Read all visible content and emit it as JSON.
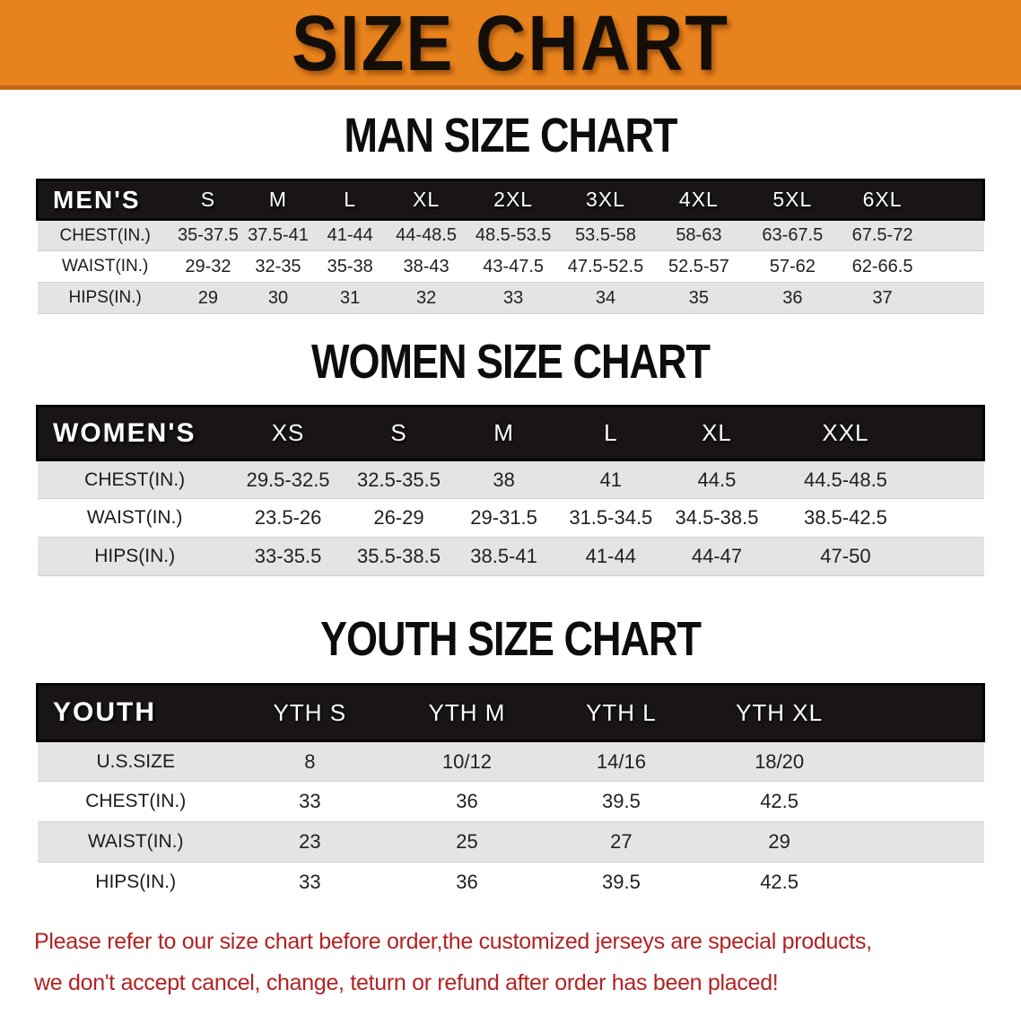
{
  "banner": {
    "title": "SIZE CHART",
    "bg_color": "#E8821C",
    "text_color": "#140e08"
  },
  "sections": [
    {
      "heading": "MAN SIZE CHART",
      "table": {
        "header_label": "MEN'S",
        "columns": [
          "S",
          "M",
          "L",
          "XL",
          "2XL",
          "3XL",
          "4XL",
          "5XL",
          "6XL"
        ],
        "rows": [
          {
            "label": "CHEST(IN.)",
            "values": [
              "35-37.5",
              "37.5-41",
              "41-44",
              "44-48.5",
              "48.5-53.5",
              "53.5-58",
              "58-63",
              "63-67.5",
              "67.5-72"
            ]
          },
          {
            "label": "WAIST(IN.)",
            "values": [
              "29-32",
              "32-35",
              "35-38",
              "38-43",
              "43-47.5",
              "47.5-52.5",
              "52.5-57",
              "57-62",
              "62-66.5"
            ]
          },
          {
            "label": "HIPS(IN.)",
            "values": [
              "29",
              "30",
              "31",
              "32",
              "33",
              "34",
              "35",
              "36",
              "37"
            ]
          }
        ]
      }
    },
    {
      "heading": "WOMEN SIZE CHART",
      "table": {
        "header_label": "WOMEN'S",
        "columns": [
          "XS",
          "S",
          "M",
          "L",
          "XL",
          "XXL"
        ],
        "rows": [
          {
            "label": "CHEST(IN.)",
            "values": [
              "29.5-32.5",
              "32.5-35.5",
              "38",
              "41",
              "44.5",
              "44.5-48.5"
            ]
          },
          {
            "label": "WAIST(IN.)",
            "values": [
              "23.5-26",
              "26-29",
              "29-31.5",
              "31.5-34.5",
              "34.5-38.5",
              "38.5-42.5"
            ]
          },
          {
            "label": "HIPS(IN.)",
            "values": [
              "33-35.5",
              "35.5-38.5",
              "38.5-41",
              "41-44",
              "44-47",
              "47-50"
            ]
          }
        ]
      }
    },
    {
      "heading": "YOUTH SIZE CHART",
      "table": {
        "header_label": "YOUTH",
        "columns": [
          "YTH S",
          "YTH M",
          "YTH L",
          "YTH XL"
        ],
        "rows": [
          {
            "label": "U.S.SIZE",
            "values": [
              "8",
              "10/12",
              "14/16",
              "18/20"
            ]
          },
          {
            "label": "CHEST(IN.)",
            "values": [
              "33",
              "36",
              "39.5",
              "42.5"
            ]
          },
          {
            "label": "WAIST(IN.)",
            "values": [
              "23",
              "25",
              "27",
              "29"
            ]
          },
          {
            "label": "HIPS(IN.)",
            "values": [
              "33",
              "36",
              "39.5",
              "42.5"
            ]
          }
        ]
      }
    }
  ],
  "disclaimer": {
    "line1": "Please refer to our size chart before order,the customized jerseys are special products,",
    "line2": "we don't accept cancel, change, teturn or refund after order has been placed!",
    "color": "#B22222"
  }
}
